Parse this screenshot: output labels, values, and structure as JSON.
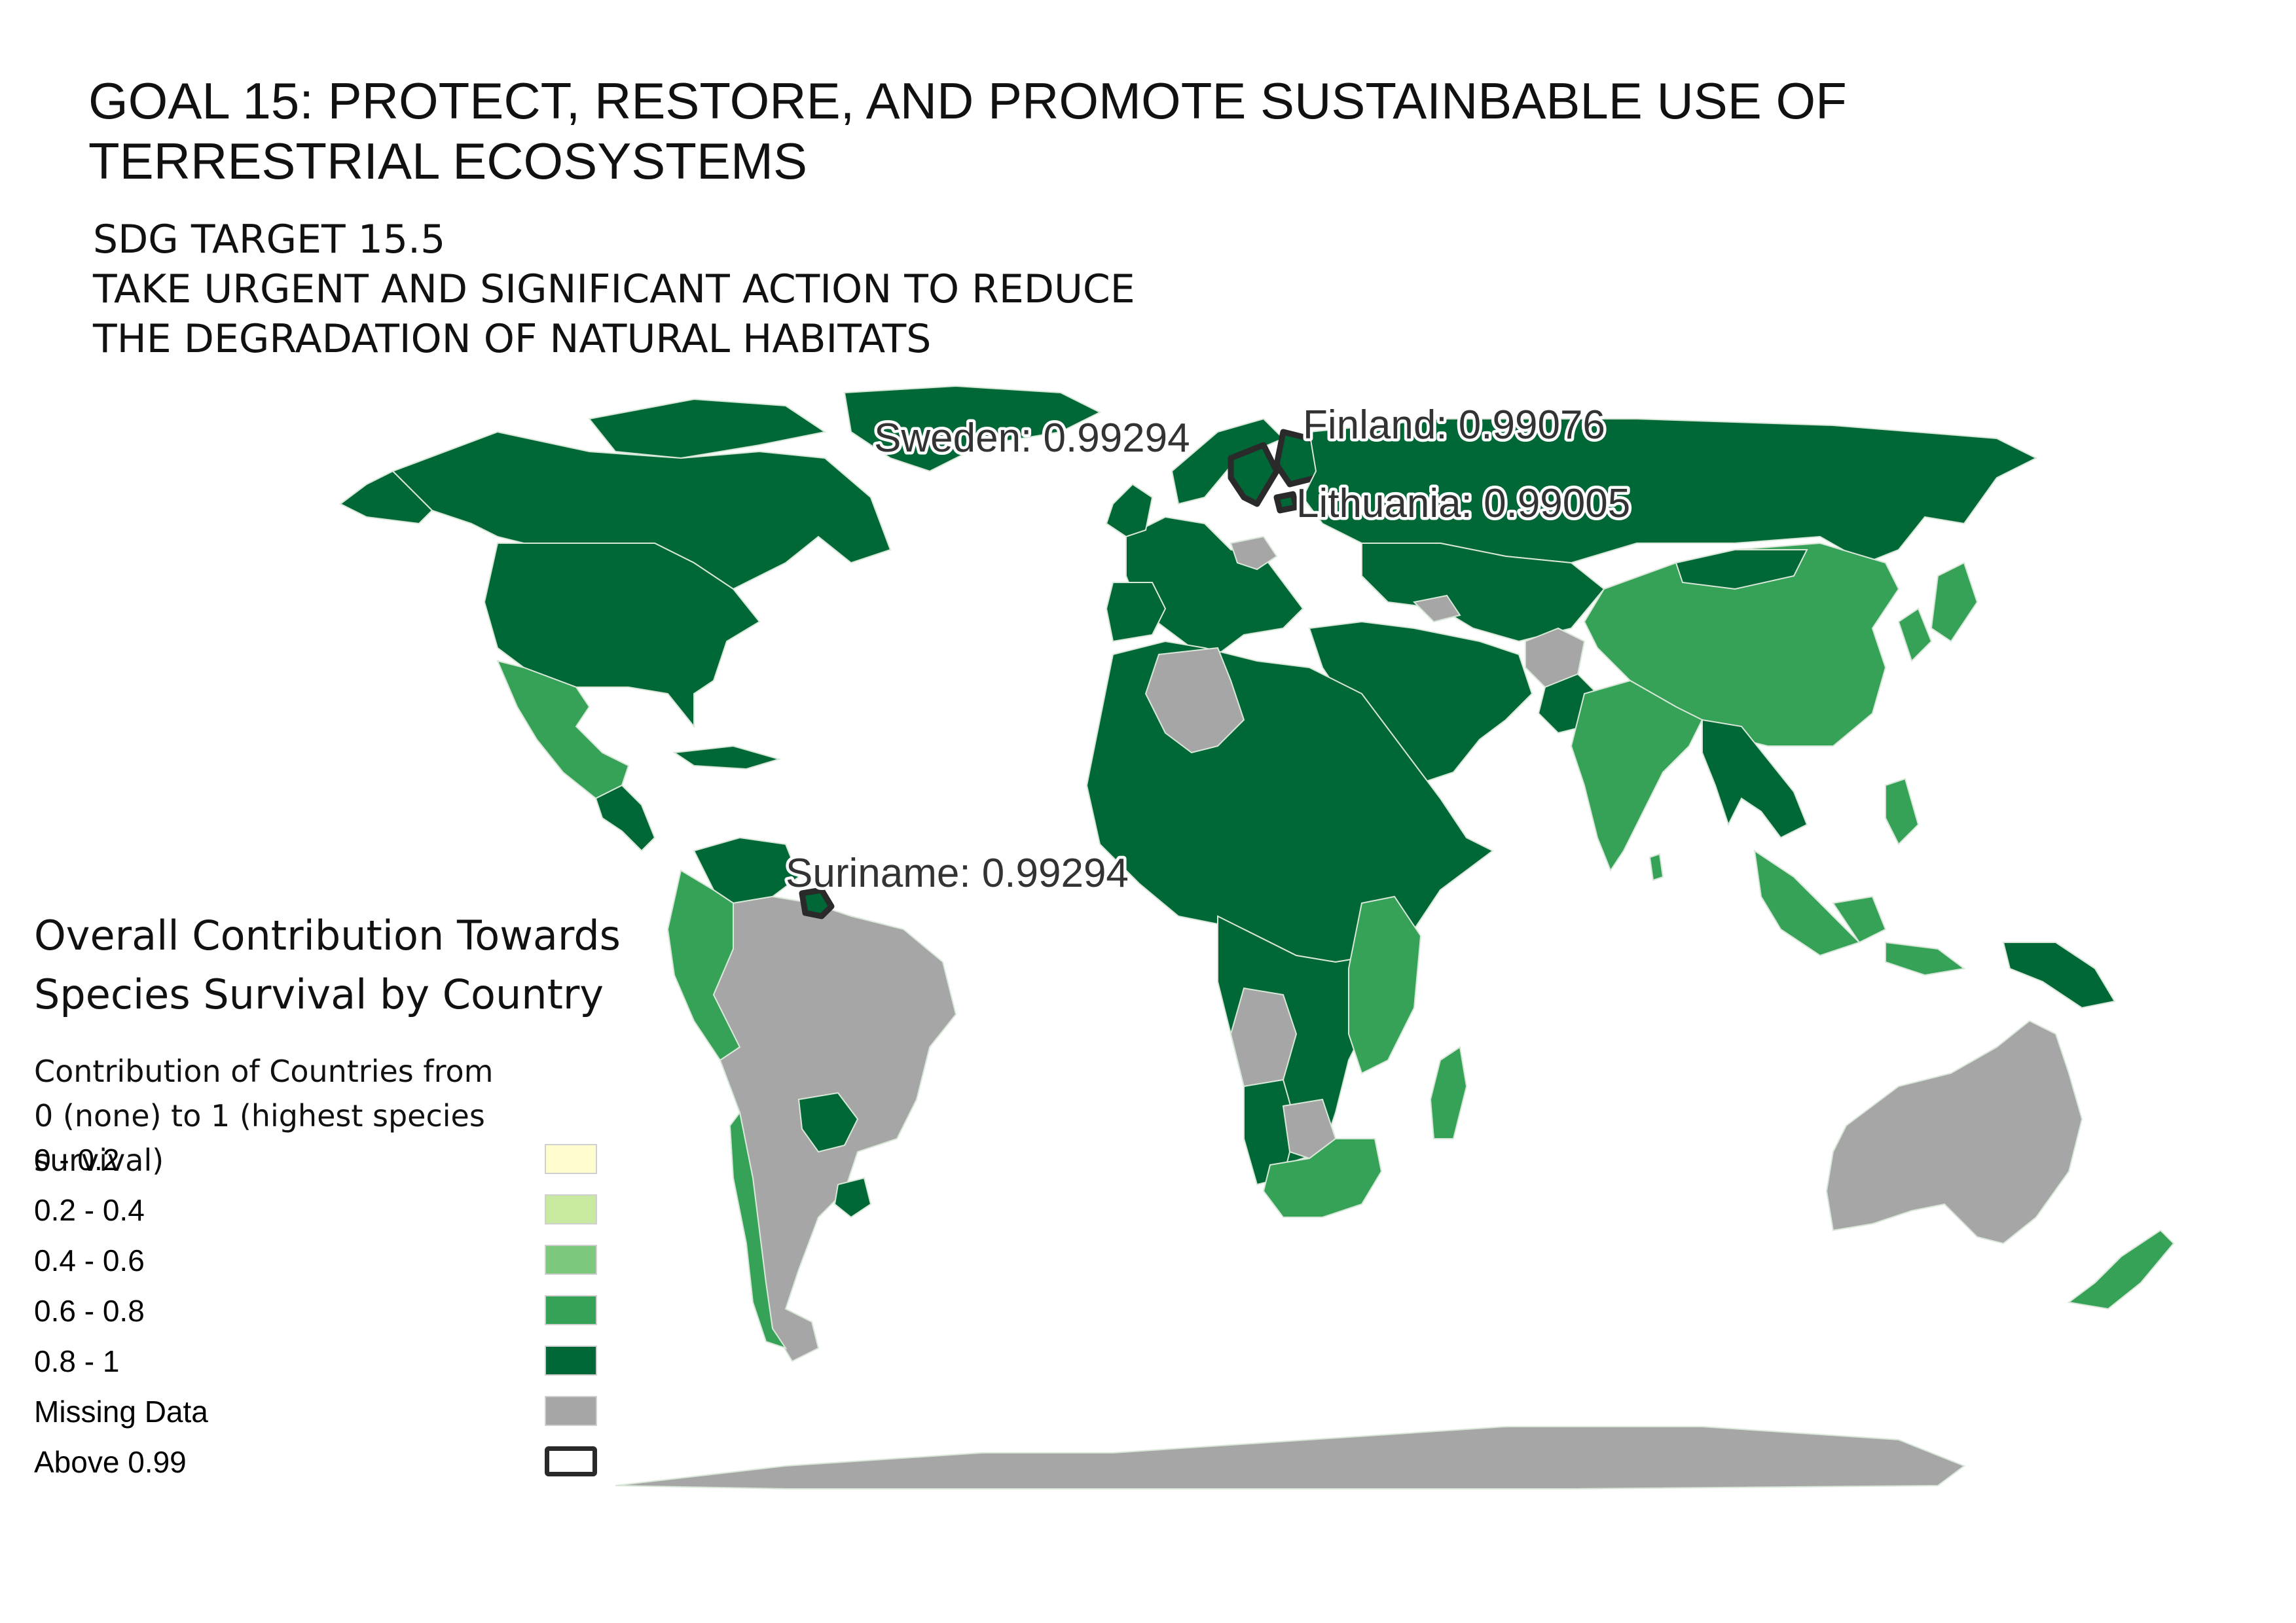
{
  "title": {
    "line1": "GOAL 15: PROTECT, RESTORE, AND PROMOTE SUSTAINBABLE USE OF",
    "line2": "TERRESTRIAL ECOSYSTEMS"
  },
  "subtitle": {
    "line1": "SDG TARGET 15.5",
    "line2": "TAKE URGENT AND SIGNIFICANT ACTION TO REDUCE",
    "line3": "THE DEGRADATION OF NATURAL HABITATS"
  },
  "legend": {
    "title_line1": "Overall Contribution Towards",
    "title_line2": "Species Survival by Country",
    "desc_line1": "Contribution of Countries from",
    "desc_line2": "0 (none) to 1 (highest species survival)",
    "classes": [
      {
        "label": "0 - 0.2",
        "color": "#fffdd0"
      },
      {
        "label": "0.2 - 0.4",
        "color": "#c7e9a0"
      },
      {
        "label": "0.4 - 0.6",
        "color": "#7dc87d"
      },
      {
        "label": "0.6 - 0.8",
        "color": "#35a257"
      },
      {
        "label": "0.8 - 1",
        "color": "#006837"
      },
      {
        "label": "Missing Data",
        "color": "#a6a6a6"
      },
      {
        "label": "Above 0.99",
        "color": "outline"
      }
    ]
  },
  "annotations": {
    "sweden": "Sweden: 0.99294",
    "finland": "Finland: 0.99076",
    "lithuania": "Lithuania: 0.99005",
    "suriname": "Suriname: 0.99294"
  },
  "colors": {
    "dark_green": "#006837",
    "mid_green": "#35a257",
    "missing": "#a6a6a6",
    "border": "#d9e7d9",
    "highlight_outline": "#2a2a2a"
  }
}
